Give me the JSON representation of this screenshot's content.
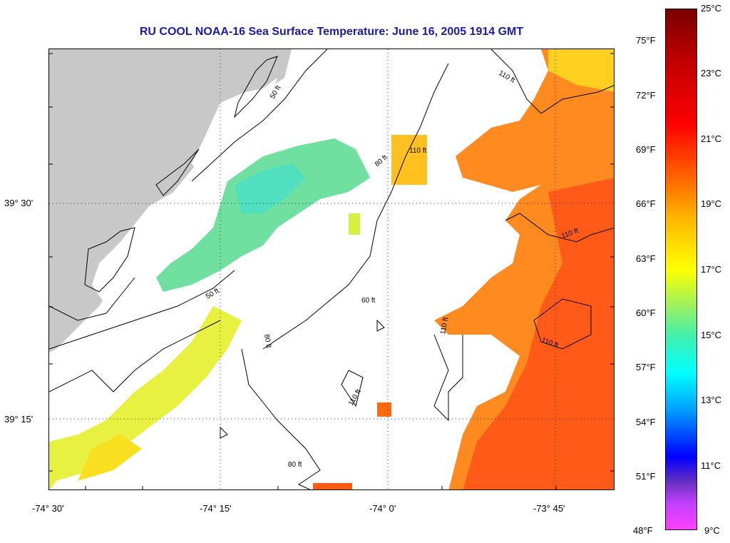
{
  "title": "RU COOL  NOAA-16  Sea Surface Temperature:  June 16, 2005 1914 GMT",
  "map": {
    "latitude_labels": [
      "39° 30'",
      "39° 15'"
    ],
    "longitude_labels": [
      "-74° 30'",
      "-74° 15'",
      "-74° 0'",
      "-73° 45'"
    ],
    "contour_labels": [
      "50 ft",
      "50 ft",
      "60 ft",
      "80 ft",
      "80 ft",
      "80 ft",
      "110 ft",
      "110 ft",
      "110 ft",
      "110 ft",
      "110 ft",
      "110 ft"
    ]
  },
  "colorbar": {
    "fahrenheit_labels": [
      "75°F",
      "72°F",
      "69°F",
      "66°F",
      "63°F",
      "60°F",
      "57°F",
      "54°F",
      "51°F",
      "48°F"
    ],
    "celsius_labels": [
      "25°C",
      "23°C",
      "21°C",
      "19°C",
      "17°C",
      "15°C",
      "13°C",
      "11°C",
      "9°C"
    ]
  },
  "colors": {
    "title": "#1a1aa6",
    "land": "#c8c8c8",
    "sst_cool": "#60e0b0",
    "sst_mid": "#e0f040",
    "sst_warm": "#ff7a1a",
    "sst_hot": "#ff4a10"
  }
}
